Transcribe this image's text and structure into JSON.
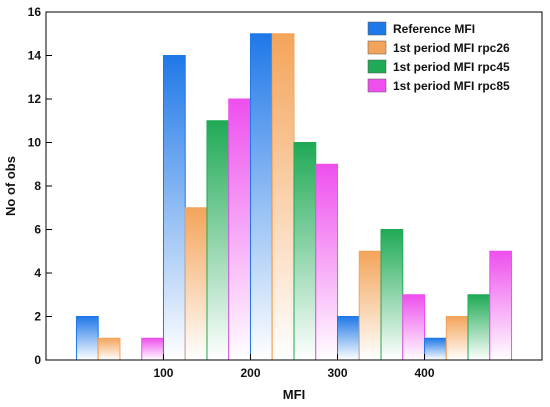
{
  "chart_data": {
    "type": "bar",
    "xlabel": "MFI",
    "ylabel": "No of obs",
    "xlim": [
      -35,
      535
    ],
    "ylim": [
      0,
      16
    ],
    "x_ticks": [
      100,
      200,
      300,
      400
    ],
    "y_ticks": [
      0,
      2,
      4,
      6,
      8,
      10,
      12,
      14,
      16
    ],
    "bins": [
      [
        0,
        100
      ],
      [
        100,
        200
      ],
      [
        200,
        300
      ],
      [
        300,
        400
      ],
      [
        400,
        500
      ]
    ],
    "legend_position": "top-right",
    "grid": false,
    "series": [
      {
        "name": "Reference MFI",
        "color": "#1f78e8",
        "values": [
          2,
          14,
          15,
          2,
          1
        ]
      },
      {
        "name": "1st period MFI rpc26",
        "color": "#f4a45a",
        "values": [
          1,
          7,
          15,
          5,
          2
        ]
      },
      {
        "name": "1st period MFI rpc45",
        "color": "#1faa55",
        "values": [
          0,
          11,
          10,
          6,
          3
        ]
      },
      {
        "name": "1st period MFI rpc85",
        "color": "#ee4fee",
        "values": [
          1,
          12,
          9,
          3,
          5
        ]
      }
    ]
  }
}
